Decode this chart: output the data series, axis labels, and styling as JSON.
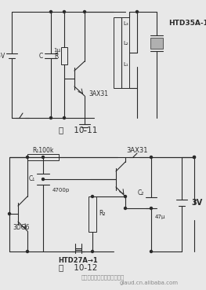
{
  "background_color": "#e8e8e8",
  "title1": "图    10-11",
  "title2": "图    10-12",
  "watermark": "东莞市科森电子塑胶有限公司",
  "watermark2": "glaud.cn.alibaba.com",
  "fig_width": 2.63,
  "fig_height": 3.69,
  "dpi": 100
}
